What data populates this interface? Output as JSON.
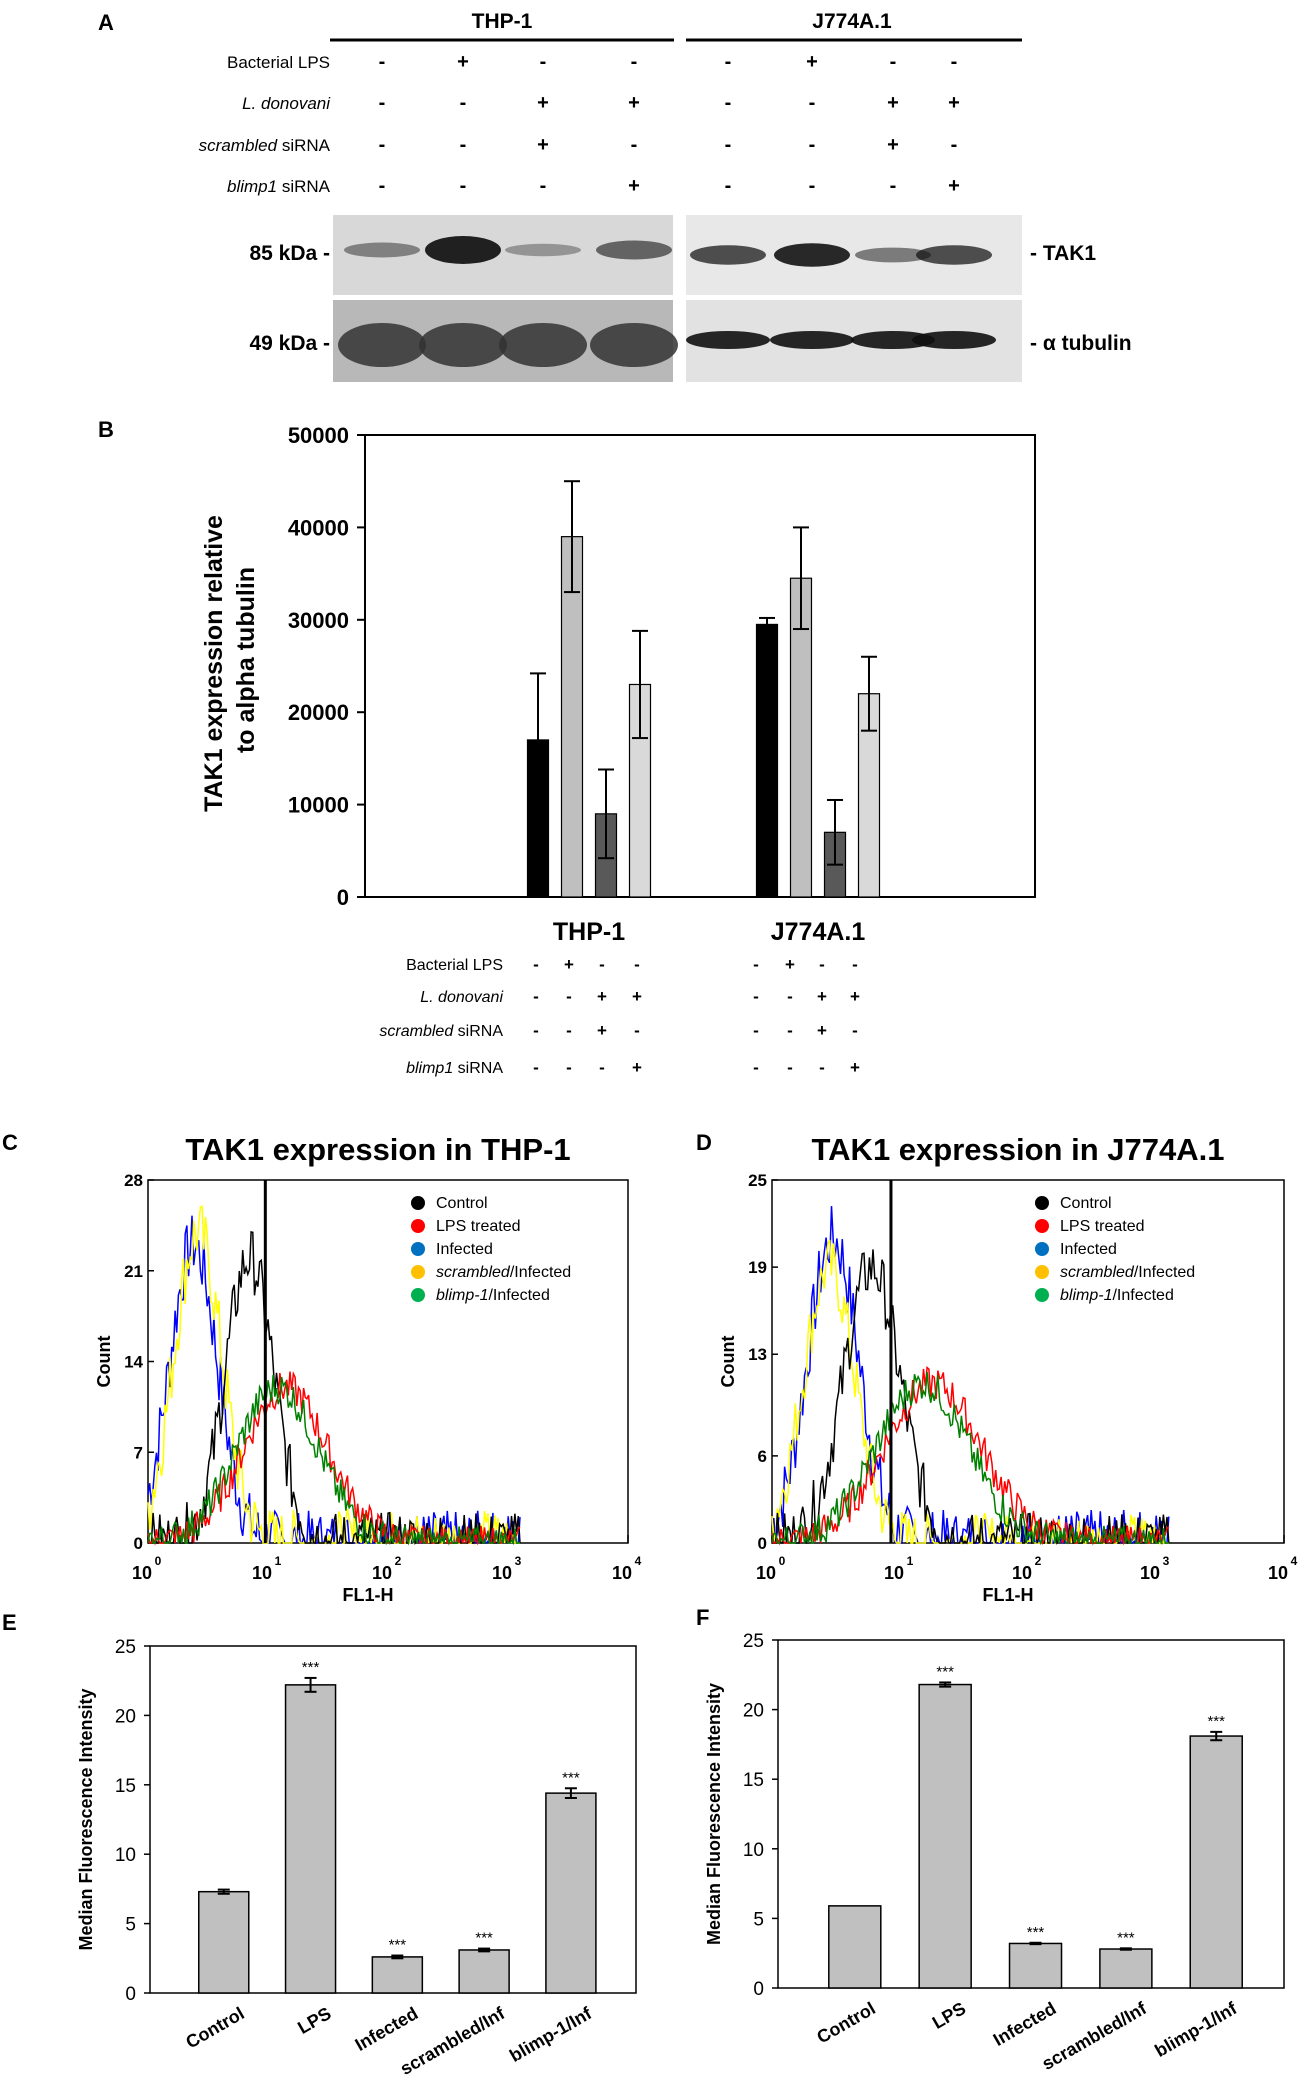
{
  "panels": {
    "A": "A",
    "B": "B",
    "C": "C",
    "D": "D",
    "E": "E",
    "F": "F"
  },
  "blot": {
    "groups": [
      "THP-1",
      "J774A.1"
    ],
    "conditions": [
      {
        "label": "Bacterial LPS",
        "italic": "",
        "suffix": "Bacterial LPS",
        "thp": [
          "-",
          "+",
          "-",
          "-"
        ],
        "j7": [
          "-",
          "+",
          "-",
          "-"
        ]
      },
      {
        "label": "L. donovani",
        "italic": "L. donovani",
        "suffix": "",
        "thp": [
          "-",
          "-",
          "+",
          "+"
        ],
        "j7": [
          "-",
          "-",
          "+",
          "+"
        ]
      },
      {
        "label": "scrambled siRNA",
        "italic": "scrambled",
        "suffix": " siRNA",
        "thp": [
          "-",
          "-",
          "+",
          "-"
        ],
        "j7": [
          "-",
          "-",
          "+",
          "-"
        ]
      },
      {
        "label": "blimp1 siRNA",
        "italic": "blimp1",
        "suffix": " siRNA",
        "thp": [
          "-",
          "-",
          "-",
          "+"
        ],
        "j7": [
          "-",
          "-",
          "-",
          "+"
        ]
      }
    ],
    "markers": [
      "85 kDa -",
      "49 kDa -"
    ],
    "bands": [
      "- TAK1",
      "- α tubulin"
    ],
    "tak1_intensity": {
      "thp": [
        0.25,
        0.9,
        0.12,
        0.45
      ],
      "j7": [
        0.6,
        0.85,
        0.3,
        0.6
      ]
    }
  },
  "panelB": {
    "ylabel_line1": "TAK1 expression relative",
    "ylabel_line2": "to alpha tubulin",
    "groups": [
      "THP-1",
      "J774A.1"
    ],
    "conditions": [
      {
        "italic": "",
        "suffix": "Bacterial LPS",
        "thp": [
          "-",
          "+",
          "-",
          "-"
        ],
        "j7": [
          "-",
          "+",
          "-",
          "-"
        ]
      },
      {
        "italic": "L. donovani",
        "suffix": "",
        "thp": [
          "-",
          "-",
          "+",
          "+"
        ],
        "j7": [
          "-",
          "-",
          "+",
          "+"
        ]
      },
      {
        "italic": "scrambled",
        "suffix": " siRNA",
        "thp": [
          "-",
          "-",
          "+",
          "-"
        ],
        "j7": [
          "-",
          "-",
          "+",
          "-"
        ]
      },
      {
        "italic": "blimp1",
        "suffix": " siRNA",
        "thp": [
          "-",
          "-",
          "-",
          "+"
        ],
        "j7": [
          "-",
          "-",
          "-",
          "+"
        ]
      }
    ]
  },
  "chart_data": [
    {
      "id": "B",
      "type": "bar",
      "title": "",
      "ylabel": "TAK1 expression relative to alpha tubulin",
      "categories": [
        "THP-1",
        "J774A.1"
      ],
      "series": [
        {
          "name": "Control",
          "color": "#000000",
          "values": [
            17000,
            29500
          ],
          "errors": [
            7200,
            700
          ]
        },
        {
          "name": "Bacterial LPS",
          "color": "#bfbfbf",
          "values": [
            39000,
            34500
          ],
          "errors": [
            6000,
            5500
          ]
        },
        {
          "name": "L. donovani + scrambled siRNA",
          "color": "#595959",
          "values": [
            9000,
            7000
          ],
          "errors": [
            4800,
            3500
          ]
        },
        {
          "name": "L. donovani + blimp1 siRNA",
          "color": "#d9d9d9",
          "values": [
            23000,
            22000
          ],
          "errors": [
            5800,
            4000
          ]
        }
      ],
      "ylim": [
        0,
        50000
      ],
      "yticks": [
        0,
        10000,
        20000,
        30000,
        40000,
        50000
      ]
    },
    {
      "id": "C",
      "type": "line",
      "title": "TAK1 expression in THP-1",
      "xlabel": "FL1-H",
      "ylabel": "Count",
      "xscale": "log",
      "xlim": [
        1,
        10000
      ],
      "ylim": [
        0,
        28
      ],
      "yticks": [
        0,
        7,
        14,
        21,
        28
      ],
      "gate": 9.5,
      "legend": [
        {
          "name": "Control",
          "italic": "",
          "suffix": "Control",
          "color": "#000000"
        },
        {
          "name": "LPS treated",
          "italic": "",
          "suffix": "LPS treated",
          "color": "#ff0000"
        },
        {
          "name": "Infected",
          "italic": "",
          "suffix": "Infected",
          "color": "#0070c0"
        },
        {
          "name": "scrambled/Infected",
          "italic": "scrambled",
          "suffix": "/Infected",
          "color": "#ffc000"
        },
        {
          "name": "blimp-1/Infected",
          "italic": "blimp-1",
          "suffix": "/Infected",
          "color": "#00b050"
        }
      ],
      "series": [
        {
          "name": "Infected",
          "color": "#0000ff",
          "peak_x": 2.4,
          "peak_y": 23,
          "width": 0.2
        },
        {
          "name": "scrambled/Infected",
          "color": "#ffff00",
          "peak_x": 2.6,
          "peak_y": 24,
          "width": 0.2
        },
        {
          "name": "Control",
          "color": "#000000",
          "peak_x": 7.0,
          "peak_y": 22,
          "width": 0.2
        },
        {
          "name": "LPS treated",
          "color": "#ff0000",
          "peak_x": 14,
          "peak_y": 12,
          "width": 0.35
        },
        {
          "name": "blimp-1/Infected",
          "color": "#008000",
          "peak_x": 12,
          "peak_y": 12,
          "width": 0.34
        }
      ]
    },
    {
      "id": "D",
      "type": "line",
      "title": "TAK1 expression in J774A.1",
      "xlabel": "FL1-H",
      "ylabel": "Count",
      "xscale": "log",
      "xlim": [
        1,
        10000
      ],
      "ylim": [
        0,
        25
      ],
      "yticks": [
        0,
        6,
        13,
        19,
        25
      ],
      "gate": 8.5,
      "legend": [
        {
          "name": "Control",
          "italic": "",
          "suffix": "Control",
          "color": "#000000"
        },
        {
          "name": "LPS treated",
          "italic": "",
          "suffix": "LPS treated",
          "color": "#ff0000"
        },
        {
          "name": "Infected",
          "italic": "",
          "suffix": "Infected",
          "color": "#0070c0"
        },
        {
          "name": "scrambled/Infected",
          "italic": "scrambled",
          "suffix": "/Infected",
          "color": "#ffc000"
        },
        {
          "name": "blimp-1/Infected",
          "italic": "blimp-1",
          "suffix": "/Infected",
          "color": "#00b050"
        }
      ],
      "series": [
        {
          "name": "Infected",
          "color": "#0000ff",
          "peak_x": 3.0,
          "peak_y": 21,
          "width": 0.2
        },
        {
          "name": "scrambled/Infected",
          "color": "#ffff00",
          "peak_x": 2.8,
          "peak_y": 19,
          "width": 0.2
        },
        {
          "name": "Control",
          "color": "#000000",
          "peak_x": 6.0,
          "peak_y": 19,
          "width": 0.22
        },
        {
          "name": "LPS treated",
          "color": "#ff0000",
          "peak_x": 18,
          "peak_y": 11,
          "width": 0.38
        },
        {
          "name": "blimp-1/Infected",
          "color": "#008000",
          "peak_x": 15,
          "peak_y": 11,
          "width": 0.36
        }
      ]
    },
    {
      "id": "E",
      "type": "bar",
      "ylabel": "Median Fluorescence Intensity",
      "categories": [
        "Control",
        "LPS",
        "Infected",
        "scrambled/Inf",
        "blimp-1/Inf"
      ],
      "values": [
        7.3,
        22.2,
        2.6,
        3.1,
        14.4
      ],
      "errors": [
        0.15,
        0.5,
        0.1,
        0.1,
        0.35
      ],
      "significance": [
        "",
        "***",
        "***",
        "***",
        "***"
      ],
      "ylim": [
        0,
        25
      ],
      "yticks": [
        0,
        5,
        10,
        15,
        20,
        25
      ]
    },
    {
      "id": "F",
      "type": "bar",
      "ylabel": "Median Fluorescence Intensity",
      "categories": [
        "Control",
        "LPS",
        "Infected",
        "scrambled/Inf",
        "blimp-1/Inf"
      ],
      "values": [
        5.9,
        21.8,
        3.2,
        2.8,
        18.1
      ],
      "errors": [
        0,
        0.15,
        0.05,
        0.05,
        0.3
      ],
      "significance": [
        "",
        "***",
        "***",
        "***",
        "***"
      ],
      "ylim": [
        0,
        25
      ],
      "yticks": [
        0,
        5,
        10,
        15,
        20,
        25
      ]
    }
  ]
}
